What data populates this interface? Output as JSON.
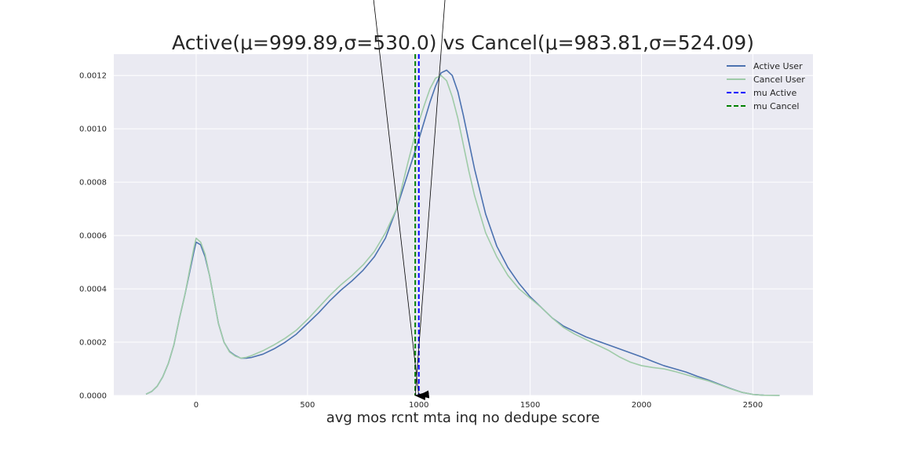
{
  "chart_data": {
    "type": "line",
    "title": "Active(μ=999.89,σ=530.0) vs Cancel(μ=983.81,σ=524.09)",
    "xlabel": "avg mos rcnt mta inq no dedupe score",
    "ylabel": "",
    "xlim": [
      -370,
      2770
    ],
    "ylim": [
      0,
      0.00128
    ],
    "x_ticks": [
      0,
      500,
      1000,
      1500,
      2000,
      2500
    ],
    "y_ticks": [
      0.0,
      0.0002,
      0.0004,
      0.0006,
      0.0008,
      0.001,
      0.0012
    ],
    "x_tick_labels": [
      "0",
      "500",
      "1000",
      "1500",
      "2000",
      "2500"
    ],
    "y_tick_labels": [
      "0.0000",
      "0.0002",
      "0.0004",
      "0.0006",
      "0.0008",
      "0.0010",
      "0.0012"
    ],
    "grid": true,
    "legend_position": "top-right",
    "background": "#eaeaf2",
    "series": [
      {
        "name": "Active User",
        "color": "#4c72b0",
        "style": "solid",
        "points": [
          [
            -225,
            5e-06
          ],
          [
            -200,
            1.5e-05
          ],
          [
            -175,
            3.5e-05
          ],
          [
            -150,
            7e-05
          ],
          [
            -125,
            0.00012
          ],
          [
            -100,
            0.00019
          ],
          [
            -75,
            0.00029
          ],
          [
            -50,
            0.00038
          ],
          [
            -25,
            0.00048
          ],
          [
            -10,
            0.00054
          ],
          [
            0,
            0.000575
          ],
          [
            20,
            0.000565
          ],
          [
            40,
            0.00052
          ],
          [
            60,
            0.00045
          ],
          [
            80,
            0.00036
          ],
          [
            100,
            0.00027
          ],
          [
            125,
            0.0002
          ],
          [
            150,
            0.000165
          ],
          [
            175,
            0.00015
          ],
          [
            200,
            0.00014
          ],
          [
            225,
            0.00014
          ],
          [
            250,
            0.000143
          ],
          [
            300,
            0.000155
          ],
          [
            350,
            0.000175
          ],
          [
            400,
            0.0002
          ],
          [
            450,
            0.00023
          ],
          [
            500,
            0.00027
          ],
          [
            550,
            0.00031
          ],
          [
            600,
            0.000355
          ],
          [
            650,
            0.000395
          ],
          [
            700,
            0.00043
          ],
          [
            750,
            0.00047
          ],
          [
            800,
            0.00052
          ],
          [
            850,
            0.00059
          ],
          [
            900,
            0.0007
          ],
          [
            950,
            0.00083
          ],
          [
            1000,
            0.00096
          ],
          [
            1025,
            0.00103
          ],
          [
            1050,
            0.0011
          ],
          [
            1075,
            0.00116
          ],
          [
            1100,
            0.00121
          ],
          [
            1125,
            0.00122
          ],
          [
            1150,
            0.0012
          ],
          [
            1175,
            0.00114
          ],
          [
            1200,
            0.00105
          ],
          [
            1225,
            0.00095
          ],
          [
            1250,
            0.00085
          ],
          [
            1300,
            0.00068
          ],
          [
            1350,
            0.00056
          ],
          [
            1400,
            0.00048
          ],
          [
            1450,
            0.00042
          ],
          [
            1500,
            0.00037
          ],
          [
            1550,
            0.00033
          ],
          [
            1600,
            0.00029
          ],
          [
            1650,
            0.00026
          ],
          [
            1700,
            0.00024
          ],
          [
            1750,
            0.00022
          ],
          [
            1800,
            0.000205
          ],
          [
            1850,
            0.00019
          ],
          [
            1900,
            0.000175
          ],
          [
            1950,
            0.00016
          ],
          [
            2000,
            0.000145
          ],
          [
            2050,
            0.000128
          ],
          [
            2100,
            0.000112
          ],
          [
            2150,
            0.0001
          ],
          [
            2200,
            8.8e-05
          ],
          [
            2250,
            7.2e-05
          ],
          [
            2300,
            5.8e-05
          ],
          [
            2350,
            4.2e-05
          ],
          [
            2400,
            2.6e-05
          ],
          [
            2450,
            1.2e-05
          ],
          [
            2500,
            4e-06
          ],
          [
            2550,
            1e-06
          ],
          [
            2620,
            5e-07
          ]
        ]
      },
      {
        "name": "Cancel User",
        "color": "#9fcba8",
        "style": "solid",
        "points": [
          [
            -225,
            5e-06
          ],
          [
            -200,
            1.5e-05
          ],
          [
            -175,
            3.5e-05
          ],
          [
            -150,
            7e-05
          ],
          [
            -125,
            0.00012
          ],
          [
            -100,
            0.00019
          ],
          [
            -75,
            0.00029
          ],
          [
            -50,
            0.00038
          ],
          [
            -25,
            0.00049
          ],
          [
            -10,
            0.000555
          ],
          [
            0,
            0.00059
          ],
          [
            20,
            0.000575
          ],
          [
            40,
            0.00053
          ],
          [
            60,
            0.00045
          ],
          [
            80,
            0.00036
          ],
          [
            100,
            0.00027
          ],
          [
            125,
            0.0002
          ],
          [
            150,
            0.000163
          ],
          [
            175,
            0.000148
          ],
          [
            200,
            0.00014
          ],
          [
            225,
            0.000143
          ],
          [
            250,
            0.00015
          ],
          [
            300,
            0.000168
          ],
          [
            350,
            0.00019
          ],
          [
            400,
            0.000215
          ],
          [
            450,
            0.000245
          ],
          [
            500,
            0.000285
          ],
          [
            550,
            0.00033
          ],
          [
            600,
            0.000375
          ],
          [
            650,
            0.000415
          ],
          [
            700,
            0.00045
          ],
          [
            750,
            0.00049
          ],
          [
            800,
            0.00054
          ],
          [
            850,
            0.00061
          ],
          [
            900,
            0.0007
          ],
          [
            950,
            0.00087
          ],
          [
            990,
            0.001
          ],
          [
            1025,
            0.00109
          ],
          [
            1050,
            0.00115
          ],
          [
            1075,
            0.00119
          ],
          [
            1100,
            0.0012
          ],
          [
            1125,
            0.00118
          ],
          [
            1150,
            0.00112
          ],
          [
            1175,
            0.00104
          ],
          [
            1200,
            0.00094
          ],
          [
            1225,
            0.00084
          ],
          [
            1250,
            0.00075
          ],
          [
            1300,
            0.00061
          ],
          [
            1350,
            0.00052
          ],
          [
            1400,
            0.00045
          ],
          [
            1450,
            0.0004
          ],
          [
            1500,
            0.000365
          ],
          [
            1550,
            0.00033
          ],
          [
            1600,
            0.00029
          ],
          [
            1650,
            0.000255
          ],
          [
            1700,
            0.00023
          ],
          [
            1750,
            0.00021
          ],
          [
            1800,
            0.00019
          ],
          [
            1850,
            0.00017
          ],
          [
            1900,
            0.000145
          ],
          [
            1950,
            0.000125
          ],
          [
            2000,
            0.000112
          ],
          [
            2050,
            0.000105
          ],
          [
            2100,
            0.0001
          ],
          [
            2150,
            9e-05
          ],
          [
            2200,
            7.8e-05
          ],
          [
            2250,
            6.6e-05
          ],
          [
            2300,
            5.5e-05
          ],
          [
            2350,
            4e-05
          ],
          [
            2400,
            2.5e-05
          ],
          [
            2450,
            1.2e-05
          ],
          [
            2500,
            4e-06
          ],
          [
            2550,
            1e-06
          ],
          [
            2620,
            5e-07
          ]
        ]
      }
    ],
    "mean_lines": [
      {
        "name": "mu Active",
        "x": 999.89,
        "color": "#0000ff",
        "style": "dashed"
      },
      {
        "name": "mu Cancel",
        "x": 983.81,
        "color": "#008000",
        "style": "dashed"
      }
    ],
    "annotations": [
      {
        "type": "arrow",
        "from": [
          1135,
          0.00168
        ],
        "to": [
          983.81,
          0
        ]
      },
      {
        "type": "arrow",
        "from": [
          770,
          0.00168
        ],
        "to": [
          999.89,
          0
        ]
      }
    ]
  }
}
